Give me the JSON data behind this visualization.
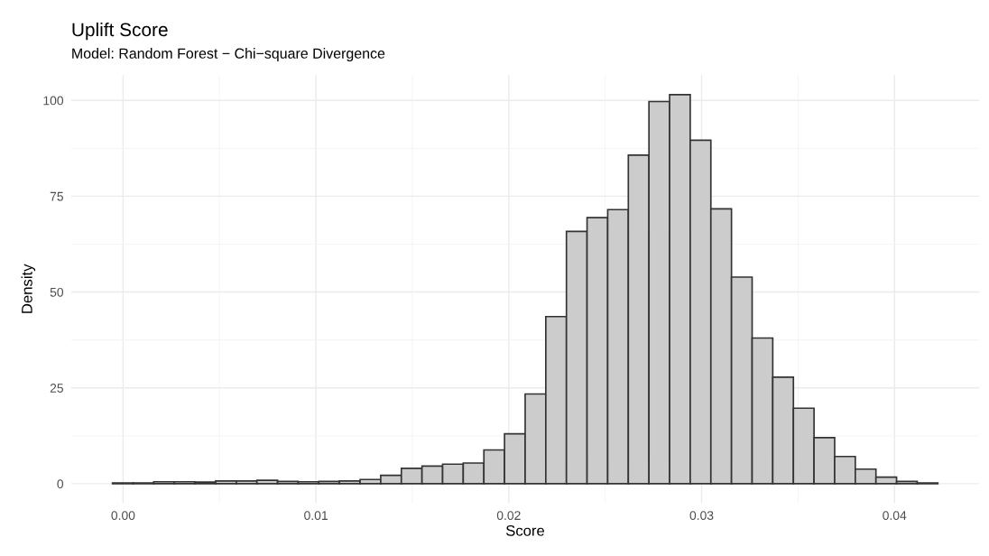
{
  "chart_data": {
    "type": "histogram",
    "title": "Uplift Score",
    "subtitle": "Model: Random Forest − Chi−square Divergence",
    "xlabel": "Score",
    "ylabel": "Density",
    "bins": [
      -0.00055,
      0.00052,
      0.00159,
      0.00266,
      0.00373,
      0.0048,
      0.00587,
      0.00694,
      0.00801,
      0.00908,
      0.01015,
      0.01122,
      0.01229,
      0.01336,
      0.01443,
      0.0155,
      0.01657,
      0.01764,
      0.01871,
      0.01978,
      0.02085,
      0.02192,
      0.02299,
      0.02406,
      0.02513,
      0.0262,
      0.02727,
      0.02834,
      0.02941,
      0.03048,
      0.03155,
      0.03262,
      0.03369,
      0.03476,
      0.03583,
      0.0369,
      0.03797,
      0.03904,
      0.04011,
      0.04118,
      0.04225
    ],
    "values": [
      0.2,
      0.2,
      0.5,
      0.5,
      0.4,
      0.7,
      0.7,
      0.9,
      0.6,
      0.5,
      0.6,
      0.7,
      1.1,
      2.2,
      4.0,
      4.6,
      5.1,
      5.4,
      8.8,
      13.0,
      23.4,
      43.6,
      65.8,
      69.4,
      71.5,
      85.7,
      99.7,
      101.5,
      89.6,
      71.7,
      53.9,
      38.0,
      27.8,
      19.7,
      12.0,
      7.1,
      3.8,
      1.7,
      0.6,
      0.2
    ],
    "color": "#cccccc",
    "xlim": [
      -0.00269,
      0.04439
    ],
    "ylim": [
      -5.08,
      106.6
    ],
    "xticks": [
      {
        "value": 0,
        "label": "0.00"
      },
      {
        "value": 0.01,
        "label": "0.01"
      },
      {
        "value": 0.02,
        "label": "0.02"
      },
      {
        "value": 0.03,
        "label": "0.03"
      },
      {
        "value": 0.04,
        "label": "0.04"
      }
    ],
    "yticks": [
      0,
      25,
      50,
      75,
      100
    ],
    "grid": true
  }
}
